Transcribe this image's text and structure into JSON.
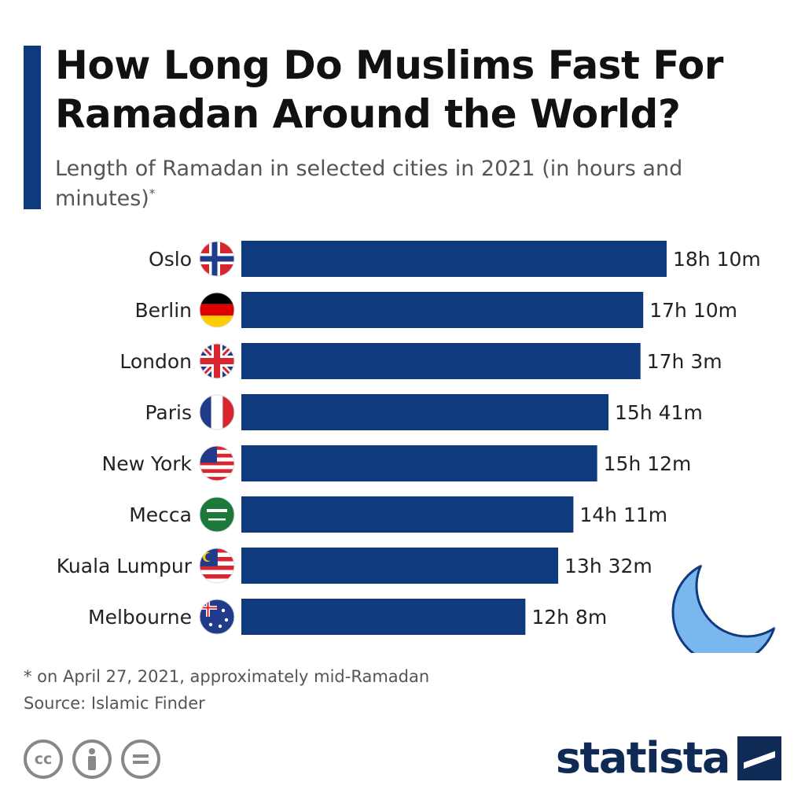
{
  "header": {
    "title": "How Long Do Muslims Fast For Ramadan Around the World?",
    "subtitle": "Length of Ramadan in selected cities in 2021 (in hours and minutes)",
    "subtitle_marker": "*"
  },
  "footer": {
    "note": "* on April 27, 2021, approximately mid-Ramadan",
    "source": "Source: Islamic Finder",
    "brand": "statista"
  },
  "colors": {
    "bar": "#0f3a7d",
    "accent": "#0f3a7d",
    "crescent": "#7bb7ef",
    "brand": "#0f2a55"
  },
  "icons": [
    "cc-icon",
    "attribution-icon",
    "no-derivatives-icon",
    "crescent-moon-icon",
    "statista-logo-icon"
  ],
  "chart_data": {
    "type": "bar",
    "orientation": "horizontal",
    "categories": [
      "Oslo",
      "Berlin",
      "London",
      "Paris",
      "New York",
      "Mecca",
      "Kuala Lumpur",
      "Melbourne"
    ],
    "flags": [
      "norway-flag-icon",
      "germany-flag-icon",
      "uk-flag-icon",
      "france-flag-icon",
      "usa-flag-icon",
      "saudi-arabia-flag-icon",
      "malaysia-flag-icon",
      "australia-flag-icon"
    ],
    "values": [
      18.1667,
      17.1667,
      17.05,
      15.6833,
      15.2,
      14.1833,
      13.5333,
      12.1333
    ],
    "labels": [
      "18h 10m",
      "17h 10m",
      "17h 3m",
      "15h 41m",
      "15h 12m",
      "14h 11m",
      "13h 32m",
      "12h 8m"
    ],
    "unit": "hours",
    "xlim": [
      0,
      18.1667
    ],
    "grid": false,
    "legend": "none"
  }
}
